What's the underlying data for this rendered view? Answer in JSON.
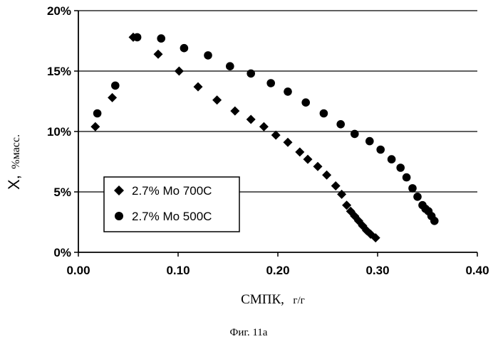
{
  "figure": {
    "caption": "Фиг. 11a"
  },
  "colors": {
    "axis": "#000000",
    "grid": "#000000",
    "marker": "#000000",
    "background": "#ffffff"
  },
  "chart_data": {
    "type": "scatter",
    "xlabel_main": "СМПК,",
    "xlabel_unit": "г/г",
    "ylabel_main": "X,",
    "ylabel_unit": "%масс.",
    "xlim": [
      0.0,
      0.4
    ],
    "ylim": [
      0,
      20
    ],
    "x_ticks": [
      "0.00",
      "0.10",
      "0.20",
      "0.30",
      "0.40"
    ],
    "y_ticks": [
      "0%",
      "5%",
      "10%",
      "15%",
      "20%"
    ],
    "grid": "horizontal",
    "legend_position": "lower-left",
    "series": [
      {
        "name": "2.7% Mo 700C",
        "marker": "diamond",
        "points": [
          [
            0.017,
            10.4
          ],
          [
            0.034,
            12.8
          ],
          [
            0.055,
            17.8
          ],
          [
            0.08,
            16.4
          ],
          [
            0.101,
            15.0
          ],
          [
            0.12,
            13.7
          ],
          [
            0.139,
            12.6
          ],
          [
            0.157,
            11.7
          ],
          [
            0.173,
            11.0
          ],
          [
            0.186,
            10.4
          ],
          [
            0.198,
            9.7
          ],
          [
            0.21,
            9.1
          ],
          [
            0.222,
            8.3
          ],
          [
            0.23,
            7.7
          ],
          [
            0.24,
            7.1
          ],
          [
            0.249,
            6.4
          ],
          [
            0.258,
            5.5
          ],
          [
            0.264,
            4.8
          ],
          [
            0.269,
            3.9
          ],
          [
            0.273,
            3.4
          ],
          [
            0.277,
            3.0
          ],
          [
            0.281,
            2.6
          ],
          [
            0.285,
            2.2
          ],
          [
            0.289,
            1.8
          ],
          [
            0.293,
            1.5
          ],
          [
            0.298,
            1.2
          ]
        ]
      },
      {
        "name": "2.7% Mo 500C",
        "marker": "circle",
        "points": [
          [
            0.019,
            11.5
          ],
          [
            0.037,
            13.8
          ],
          [
            0.059,
            17.8
          ],
          [
            0.083,
            17.7
          ],
          [
            0.106,
            16.9
          ],
          [
            0.13,
            16.3
          ],
          [
            0.152,
            15.4
          ],
          [
            0.173,
            14.8
          ],
          [
            0.193,
            14.0
          ],
          [
            0.21,
            13.3
          ],
          [
            0.228,
            12.4
          ],
          [
            0.246,
            11.5
          ],
          [
            0.263,
            10.6
          ],
          [
            0.277,
            9.8
          ],
          [
            0.292,
            9.2
          ],
          [
            0.303,
            8.5
          ],
          [
            0.314,
            7.7
          ],
          [
            0.323,
            7.0
          ],
          [
            0.329,
            6.2
          ],
          [
            0.335,
            5.3
          ],
          [
            0.34,
            4.6
          ],
          [
            0.345,
            3.9
          ],
          [
            0.348,
            3.6
          ],
          [
            0.351,
            3.4
          ],
          [
            0.354,
            3.0
          ],
          [
            0.357,
            2.6
          ]
        ]
      }
    ]
  }
}
